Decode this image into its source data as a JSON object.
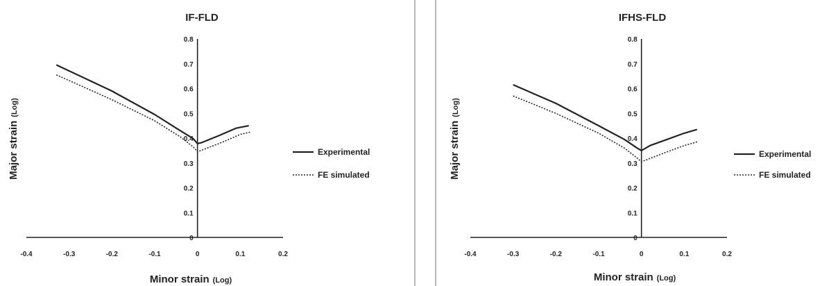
{
  "chart_data": [
    {
      "type": "line",
      "title": "IF-FLD",
      "xlabel": "Minor strain",
      "xunit": "(Log)",
      "ylabel": "Major strain",
      "yunit": "(Log)",
      "xlim": [
        -0.4,
        0.2
      ],
      "ylim": [
        0,
        0.8
      ],
      "xticks": [
        "-0.4",
        "-0.3",
        "-0.2",
        "-0.1",
        "0",
        "0.1",
        "0.2"
      ],
      "yticks": [
        "0",
        "0.1",
        "0.2",
        "0.3",
        "0.4",
        "0.5",
        "0.6",
        "0.7",
        "0.8"
      ],
      "grid": false,
      "legend_position": "right",
      "series": [
        {
          "name": "Experimental",
          "style": "solid",
          "color": "#222222",
          "points": [
            [
              -0.33,
              0.695
            ],
            [
              -0.2,
              0.59
            ],
            [
              -0.1,
              0.495
            ],
            [
              -0.04,
              0.43
            ],
            [
              -0.01,
              0.398
            ],
            [
              0.0,
              0.378
            ],
            [
              0.01,
              0.382
            ],
            [
              0.05,
              0.41
            ],
            [
              0.09,
              0.44
            ],
            [
              0.12,
              0.45
            ]
          ]
        },
        {
          "name": "FE simulated",
          "style": "dotted",
          "color": "#222222",
          "points": [
            [
              -0.33,
              0.655
            ],
            [
              -0.2,
              0.555
            ],
            [
              -0.1,
              0.47
            ],
            [
              -0.04,
              0.405
            ],
            [
              -0.01,
              0.365
            ],
            [
              0.0,
              0.345
            ],
            [
              0.02,
              0.358
            ],
            [
              0.06,
              0.385
            ],
            [
              0.1,
              0.415
            ],
            [
              0.125,
              0.425
            ]
          ]
        }
      ]
    },
    {
      "type": "line",
      "title": "IFHS-FLD",
      "xlabel": "Minor strain",
      "xunit": "(Log)",
      "ylabel": "Major strain",
      "yunit": "(Log)",
      "xlim": [
        -0.4,
        0.2
      ],
      "ylim": [
        0,
        0.8
      ],
      "xticks": [
        "-0.4",
        "-0.3",
        "-0.2",
        "-0.1",
        "0",
        "0.1",
        "0.2"
      ],
      "yticks": [
        "0",
        "0.1",
        "0.2",
        "0.3",
        "0.4",
        "0.5",
        "0.6",
        "0.7",
        "0.8"
      ],
      "grid": false,
      "legend_position": "right",
      "series": [
        {
          "name": "Experimental",
          "style": "solid",
          "color": "#222222",
          "points": [
            [
              -0.3,
              0.615
            ],
            [
              -0.2,
              0.54
            ],
            [
              -0.1,
              0.45
            ],
            [
              -0.04,
              0.395
            ],
            [
              -0.01,
              0.36
            ],
            [
              0.0,
              0.35
            ],
            [
              0.02,
              0.37
            ],
            [
              0.06,
              0.395
            ],
            [
              0.1,
              0.42
            ],
            [
              0.13,
              0.435
            ]
          ]
        },
        {
          "name": "FE simulated",
          "style": "dotted",
          "color": "#222222",
          "points": [
            [
              -0.3,
              0.57
            ],
            [
              -0.2,
              0.5
            ],
            [
              -0.1,
              0.42
            ],
            [
              -0.04,
              0.36
            ],
            [
              -0.01,
              0.32
            ],
            [
              0.0,
              0.305
            ],
            [
              0.02,
              0.318
            ],
            [
              0.06,
              0.345
            ],
            [
              0.1,
              0.37
            ],
            [
              0.13,
              0.385
            ]
          ]
        }
      ]
    }
  ]
}
